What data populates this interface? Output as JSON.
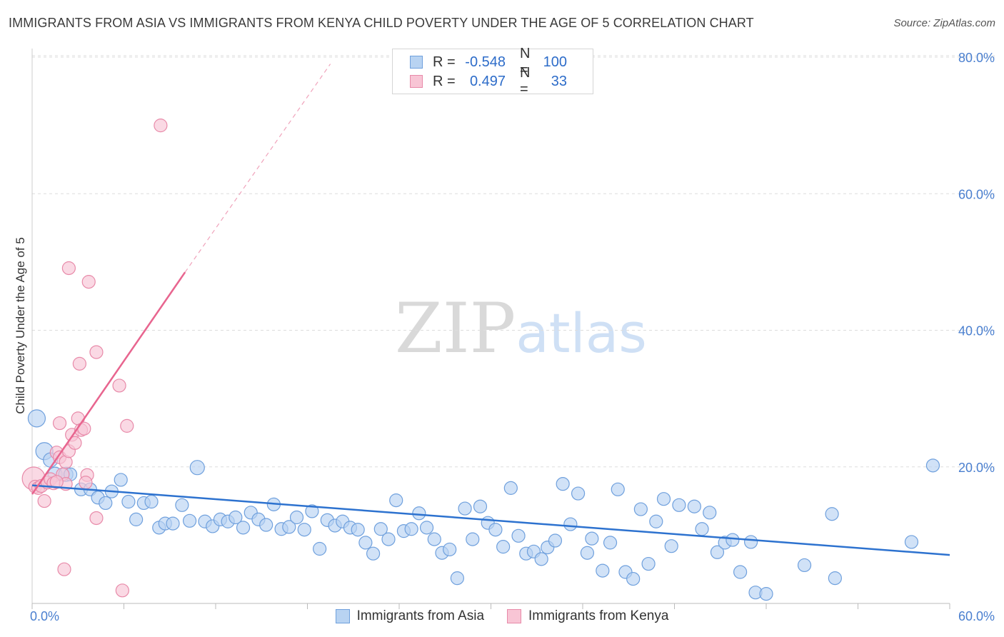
{
  "title": "IMMIGRANTS FROM ASIA VS IMMIGRANTS FROM KENYA CHILD POVERTY UNDER THE AGE OF 5 CORRELATION CHART",
  "source": "Source: ZipAtlas.com",
  "watermark": {
    "zip": "ZIP",
    "atlas": "atlas"
  },
  "legend": {
    "r_label": "R =",
    "n_label": "N =",
    "rows": [
      {
        "r": "-0.548",
        "n": "100"
      },
      {
        "r": "0.497",
        "n": "33"
      }
    ]
  },
  "colors": {
    "asia_fill": "#b8d3f2",
    "asia_stroke": "#6fa0dd",
    "asia_line": "#2d72cf",
    "kenya_fill": "#f8c5d5",
    "kenya_stroke": "#e88aa9",
    "kenya_line": "#e8658f",
    "tick_text": "#4a7fcf",
    "grid": "#dddddd"
  },
  "chart_data": {
    "type": "scatter",
    "title": "IMMIGRANTS FROM ASIA VS IMMIGRANTS FROM KENYA CHILD POVERTY UNDER THE AGE OF 5 CORRELATION CHART",
    "xlabel": "",
    "ylabel": "Child Poverty Under the Age of 5",
    "xlim": [
      0,
      60
    ],
    "ylim": [
      0,
      80
    ],
    "x_ticks": [
      0,
      6,
      12,
      18,
      24,
      30,
      36,
      42,
      48,
      54,
      60
    ],
    "x_tick_labels": [
      "0.0%",
      "60.0%"
    ],
    "y_ticks": [
      20,
      40,
      60,
      80
    ],
    "y_tick_labels": [
      "20.0%",
      "40.0%",
      "60.0%",
      "80.0%"
    ],
    "grid": "horizontal dashed",
    "legend_position": "top-center",
    "series": [
      {
        "name": "Immigrants from Asia",
        "r": -0.548,
        "n": 100,
        "trendline": {
          "x": [
            0,
            60
          ],
          "y": [
            17.3,
            7.1
          ]
        },
        "points": [
          [
            0.3,
            27.1,
            12
          ],
          [
            0.8,
            22.3,
            12
          ],
          [
            1.2,
            21.0,
            10
          ],
          [
            1.5,
            18.9,
            10
          ],
          [
            2.2,
            18.9,
            10
          ],
          [
            2.5,
            18.9,
            9
          ],
          [
            3.2,
            16.7,
            9
          ],
          [
            3.8,
            16.7,
            9
          ],
          [
            4.3,
            15.5,
            9
          ],
          [
            4.8,
            14.7,
            9
          ],
          [
            5.2,
            16.4,
            9
          ],
          [
            5.8,
            18.1,
            9
          ],
          [
            6.3,
            14.9,
            9
          ],
          [
            6.8,
            12.3,
            9
          ],
          [
            7.3,
            14.7,
            9
          ],
          [
            7.8,
            14.9,
            9
          ],
          [
            8.3,
            11.1,
            9
          ],
          [
            8.7,
            11.7,
            9
          ],
          [
            9.2,
            11.7,
            9
          ],
          [
            9.8,
            14.4,
            9
          ],
          [
            10.3,
            12.1,
            9
          ],
          [
            10.8,
            19.9,
            10
          ],
          [
            11.3,
            12.0,
            9
          ],
          [
            11.8,
            11.3,
            9
          ],
          [
            12.3,
            12.3,
            9
          ],
          [
            12.8,
            12.0,
            9
          ],
          [
            13.3,
            12.6,
            9
          ],
          [
            13.8,
            11.1,
            9
          ],
          [
            14.3,
            13.3,
            9
          ],
          [
            14.8,
            12.3,
            9
          ],
          [
            15.3,
            11.5,
            9
          ],
          [
            15.8,
            14.5,
            9
          ],
          [
            16.3,
            10.9,
            9
          ],
          [
            16.8,
            11.2,
            9
          ],
          [
            17.3,
            12.6,
            9
          ],
          [
            17.8,
            10.8,
            9
          ],
          [
            18.3,
            13.5,
            9
          ],
          [
            18.8,
            8.0,
            9
          ],
          [
            19.3,
            12.2,
            9
          ],
          [
            19.8,
            11.4,
            9
          ],
          [
            20.3,
            12.0,
            9
          ],
          [
            20.8,
            11.1,
            9
          ],
          [
            21.3,
            10.8,
            9
          ],
          [
            21.8,
            8.9,
            9
          ],
          [
            22.3,
            7.3,
            9
          ],
          [
            22.8,
            10.9,
            9
          ],
          [
            23.3,
            9.4,
            9
          ],
          [
            23.8,
            15.1,
            9
          ],
          [
            24.3,
            10.6,
            9
          ],
          [
            24.8,
            10.9,
            9
          ],
          [
            25.3,
            13.2,
            9
          ],
          [
            25.8,
            11.1,
            9
          ],
          [
            26.3,
            9.4,
            9
          ],
          [
            26.8,
            7.4,
            9
          ],
          [
            27.3,
            7.9,
            9
          ],
          [
            27.8,
            3.7,
            9
          ],
          [
            28.3,
            13.9,
            9
          ],
          [
            28.8,
            9.4,
            9
          ],
          [
            29.3,
            14.2,
            9
          ],
          [
            29.8,
            11.8,
            9
          ],
          [
            30.3,
            10.8,
            9
          ],
          [
            30.8,
            8.3,
            9
          ],
          [
            31.3,
            16.9,
            9
          ],
          [
            31.8,
            9.9,
            9
          ],
          [
            32.3,
            7.3,
            9
          ],
          [
            32.8,
            7.6,
            9
          ],
          [
            33.3,
            6.5,
            9
          ],
          [
            33.7,
            8.2,
            9
          ],
          [
            34.2,
            9.2,
            9
          ],
          [
            34.7,
            17.5,
            9
          ],
          [
            35.2,
            11.6,
            9
          ],
          [
            35.7,
            16.1,
            9
          ],
          [
            36.3,
            7.4,
            9
          ],
          [
            36.6,
            9.5,
            9
          ],
          [
            37.3,
            4.8,
            9
          ],
          [
            37.8,
            8.9,
            9
          ],
          [
            38.3,
            16.7,
            9
          ],
          [
            38.8,
            4.6,
            9
          ],
          [
            39.3,
            3.6,
            9
          ],
          [
            39.8,
            13.8,
            9
          ],
          [
            40.3,
            5.8,
            9
          ],
          [
            40.8,
            12.0,
            9
          ],
          [
            41.3,
            15.3,
            9
          ],
          [
            41.8,
            8.4,
            9
          ],
          [
            42.3,
            14.4,
            9
          ],
          [
            43.3,
            14.2,
            9
          ],
          [
            43.8,
            10.9,
            9
          ],
          [
            44.3,
            13.3,
            9
          ],
          [
            44.8,
            7.5,
            9
          ],
          [
            45.3,
            8.9,
            9
          ],
          [
            45.8,
            9.3,
            9
          ],
          [
            46.3,
            4.6,
            9
          ],
          [
            47.0,
            9.0,
            9
          ],
          [
            47.3,
            1.6,
            9
          ],
          [
            48.0,
            1.4,
            9
          ],
          [
            50.5,
            5.6,
            9
          ],
          [
            52.3,
            13.1,
            9
          ],
          [
            52.5,
            3.7,
            9
          ],
          [
            57.5,
            9.0,
            9
          ],
          [
            58.9,
            20.2,
            9
          ]
        ]
      },
      {
        "name": "Immigrants from Kenya",
        "r": 0.497,
        "n": 33,
        "trendline": {
          "x": [
            0,
            10
          ],
          "y": [
            16.0,
            48.5
          ]
        },
        "trendline_dashed": {
          "x": [
            10,
            19.5
          ],
          "y": [
            48.5,
            79.0
          ]
        },
        "points": [
          [
            0.1,
            18.3,
            16
          ],
          [
            0.2,
            17.1,
            9
          ],
          [
            0.4,
            16.9,
            9
          ],
          [
            0.6,
            17.2,
            9
          ],
          [
            0.8,
            15.0,
            9
          ],
          [
            1.0,
            17.7,
            9
          ],
          [
            1.2,
            18.2,
            9
          ],
          [
            1.4,
            17.6,
            9
          ],
          [
            1.6,
            22.1,
            9
          ],
          [
            1.8,
            21.4,
            9
          ],
          [
            2.0,
            18.9,
            9
          ],
          [
            2.2,
            20.7,
            9
          ],
          [
            1.8,
            26.4,
            9
          ],
          [
            2.4,
            22.3,
            9
          ],
          [
            2.6,
            24.7,
            9
          ],
          [
            2.8,
            23.5,
            9
          ],
          [
            3.0,
            27.1,
            9
          ],
          [
            3.2,
            25.4,
            9
          ],
          [
            3.4,
            25.6,
            9
          ],
          [
            3.1,
            35.1,
            9
          ],
          [
            3.6,
            18.8,
            9
          ],
          [
            3.5,
            17.7,
            9
          ],
          [
            2.4,
            49.1,
            9
          ],
          [
            3.7,
            47.1,
            9
          ],
          [
            4.2,
            36.8,
            9
          ],
          [
            4.2,
            12.5,
            9
          ],
          [
            5.7,
            31.9,
            9
          ],
          [
            6.2,
            26.0,
            9
          ],
          [
            5.9,
            1.9,
            9
          ],
          [
            2.1,
            5.0,
            9
          ],
          [
            2.2,
            17.5,
            9
          ],
          [
            1.6,
            17.8,
            9
          ],
          [
            8.4,
            70.0,
            9
          ]
        ]
      }
    ]
  }
}
